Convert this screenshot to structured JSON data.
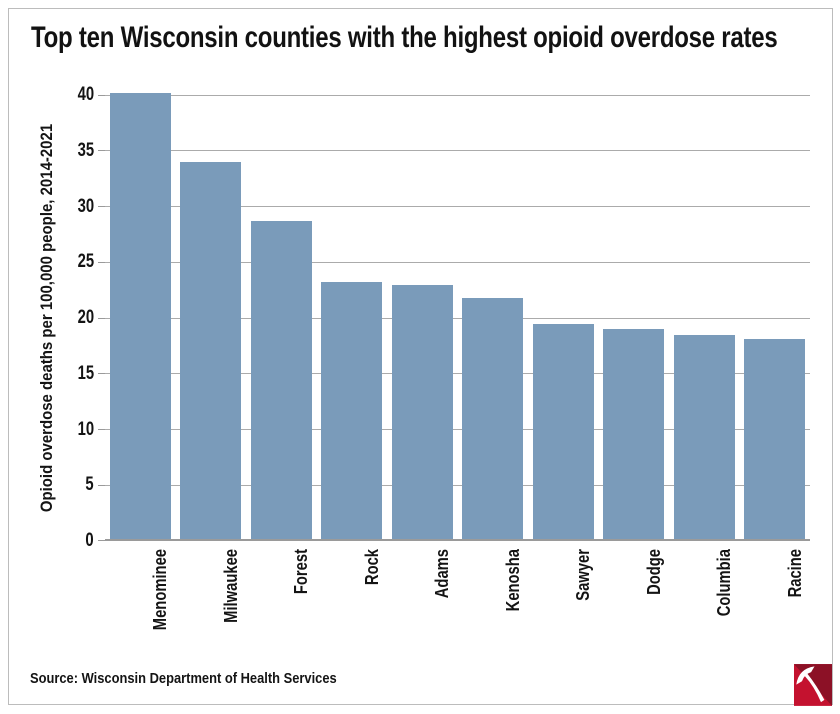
{
  "header": {
    "title": "Top ten Wisconsin counties with the highest opioid overdose rates"
  },
  "footer": {
    "source": "Source: Wisconsin Department of Health Services"
  },
  "logo": {
    "name": "pickaxe-logo",
    "bright_red": "#c4122f",
    "dark_red": "#8c1126",
    "glyph_color": "#ffffff"
  },
  "style": {
    "bar_color": "#7a9bba",
    "gridline_color": "#ababab",
    "axis_color": "#9a9a9a",
    "border_color": "#bcbcbc",
    "text_color": "#141414"
  },
  "chart_data": {
    "type": "bar",
    "categories": [
      "Menominee",
      "Milwaukee",
      "Forest",
      "Rock",
      "Adams",
      "Kenosha",
      "Sawyer",
      "Dodge",
      "Columbia",
      "Racine"
    ],
    "values": [
      40.2,
      34,
      28.7,
      23.2,
      23,
      21.8,
      19.5,
      19,
      18.5,
      18.1
    ],
    "title": "Top ten Wisconsin counties with the highest opioid overdose rates",
    "xlabel": "",
    "ylabel": "Opioid overdose deaths per 100,000 people, 2014-2021",
    "ylim": [
      0,
      40
    ],
    "ytick_step": 5,
    "yticks": [
      0,
      5,
      10,
      15,
      20,
      25,
      30,
      35,
      40
    ],
    "grid": true,
    "legend": "none"
  }
}
